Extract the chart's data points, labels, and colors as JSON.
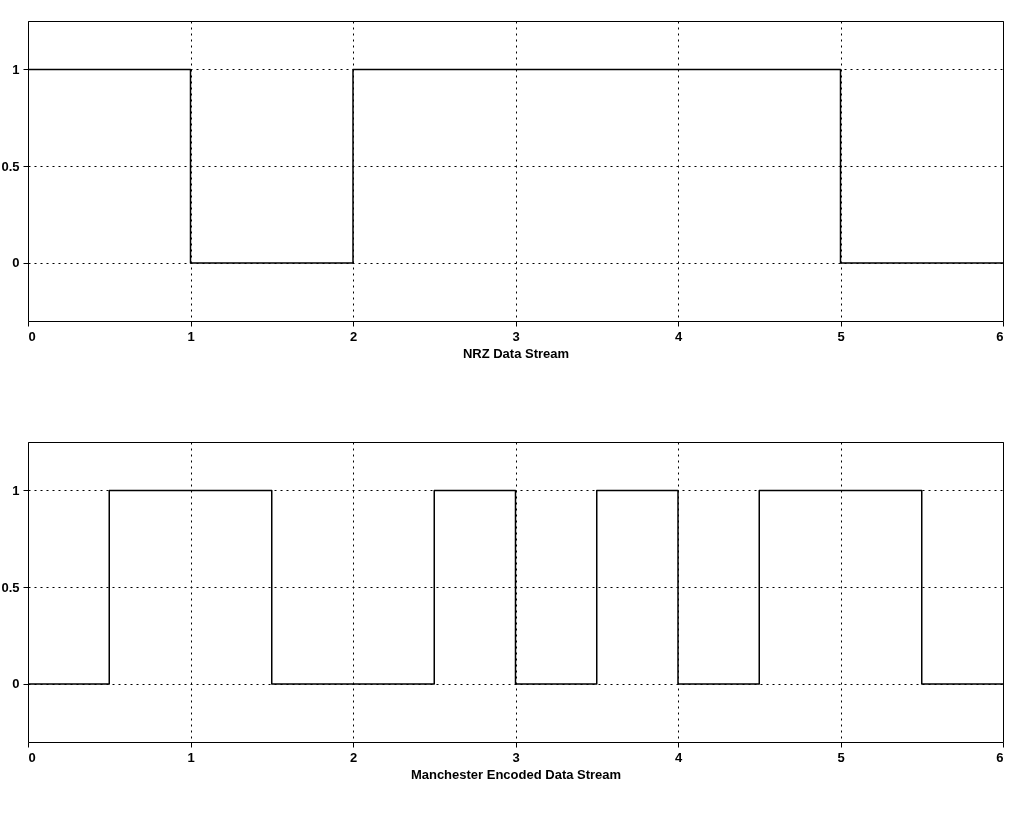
{
  "chart_data": [
    {
      "type": "step",
      "xlabel": "NRZ Data Stream",
      "x": [
        0,
        1,
        2,
        5,
        6
      ],
      "series": [
        {
          "color": "#000000",
          "values": [
            1,
            0,
            1,
            0,
            0
          ]
        }
      ],
      "xlim": [
        0,
        6
      ],
      "xticks": [
        0,
        1,
        2,
        3,
        4,
        5,
        6
      ],
      "ylim": [
        -0.3,
        1.25
      ],
      "yticks": [
        0,
        0.5,
        1
      ],
      "grid": true,
      "line_style": "solid"
    },
    {
      "type": "step",
      "xlabel": "Manchester Encoded Data Stream",
      "x": [
        0,
        0.5,
        1.5,
        2.5,
        3,
        3.5,
        4,
        4.5,
        5.5,
        6
      ],
      "series": [
        {
          "color": "#000000",
          "values": [
            0,
            1,
            0,
            1,
            0,
            1,
            0,
            1,
            0,
            0
          ]
        }
      ],
      "xlim": [
        0,
        6
      ],
      "xticks": [
        0,
        1,
        2,
        3,
        4,
        5,
        6
      ],
      "ylim": [
        -0.3,
        1.25
      ],
      "yticks": [
        0,
        0.5,
        1
      ],
      "grid": true,
      "line_style": "solid"
    }
  ]
}
